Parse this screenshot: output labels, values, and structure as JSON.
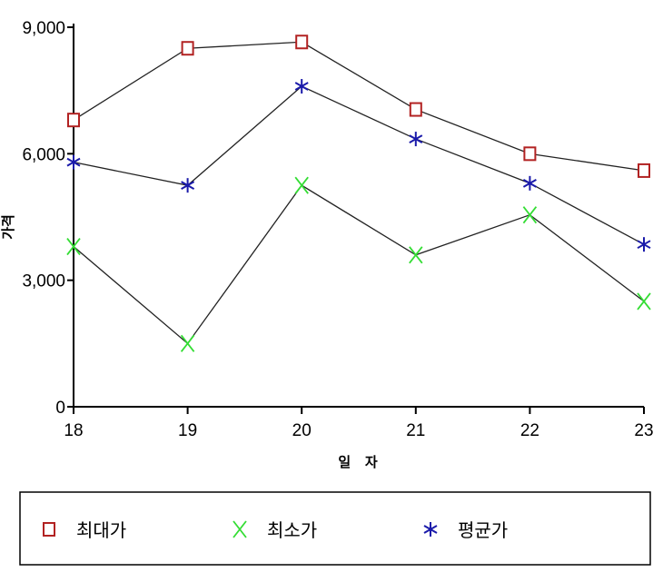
{
  "chart_data": {
    "type": "line",
    "title": "",
    "xlabel": "일   자",
    "ylabel": "가격",
    "categories": [
      "18",
      "19",
      "20",
      "21",
      "22",
      "23"
    ],
    "yticks": [
      "0",
      "3,000",
      "6,000",
      "9,000"
    ],
    "ytick_values": [
      0,
      3000,
      6000,
      9000
    ],
    "ylim": [
      0,
      9000
    ],
    "grid": false,
    "legend_placement": "bottom",
    "series": [
      {
        "name": "최대가",
        "values": [
          6800,
          8500,
          8650,
          7050,
          6000,
          5600
        ],
        "color": "#b22222",
        "marker": "square"
      },
      {
        "name": "최소가",
        "values": [
          3800,
          1500,
          5250,
          3600,
          4550,
          2500
        ],
        "color": "#33dd33",
        "marker": "x"
      },
      {
        "name": "평균가",
        "values": [
          5800,
          5250,
          7600,
          6350,
          5300,
          3850
        ],
        "color": "#1a1aaa",
        "marker": "asterisk"
      }
    ]
  }
}
